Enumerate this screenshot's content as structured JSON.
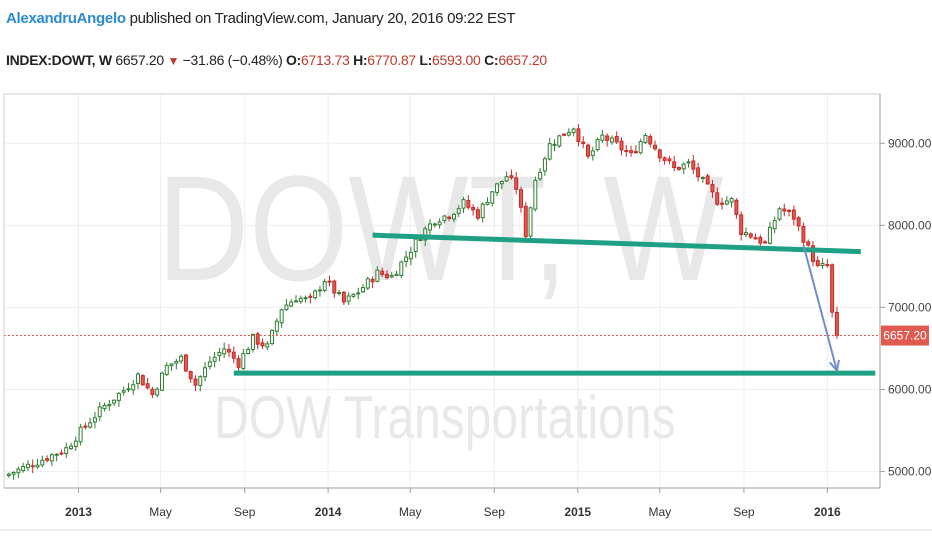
{
  "header": {
    "user": "AlexandruAngelo",
    "published": "published on TradingView.com, January 20, 2016 09:22 EST",
    "symbol": "INDEX:DOWT, W",
    "price": "6657.20",
    "change": "−31.86 (−0.48%)",
    "o_label": "O:",
    "o_value": "6713.73",
    "h_label": "H:",
    "h_value": "6770.87",
    "l_label": "L:",
    "l_value": "6593.00",
    "c_label": "C:",
    "c_value": "6657.20"
  },
  "colors": {
    "up": "#2e7d32",
    "down": "#c62828",
    "down_fill": "#e05a50",
    "trendline": "#1fa085",
    "arrow": "#6f8fc8",
    "price_tag": "#e05a50",
    "grid": "#eeeeee"
  },
  "chart_data": {
    "type": "candlestick",
    "symbol": "INDEX:DOWT",
    "interval": "W",
    "watermark_symbol": "DOWT, W",
    "watermark_name": "DOW Transportations",
    "ylim": [
      4800,
      9600
    ],
    "y_ticks": [
      "9000.00",
      "8000.00",
      "7000.00",
      "6000.00",
      "5000.00"
    ],
    "y_tick_values": [
      9000,
      8000,
      7000,
      6000,
      5000
    ],
    "x_ticks": [
      "2013",
      "May",
      "Sep",
      "2014",
      "May",
      "Sep",
      "2015",
      "May",
      "Sep",
      "2016"
    ],
    "x_tick_bold": [
      true,
      false,
      false,
      true,
      false,
      false,
      true,
      false,
      false,
      true
    ],
    "x_tick_dates": [
      "2013-01-01",
      "2013-05-01",
      "2013-09-01",
      "2014-01-01",
      "2014-05-01",
      "2014-09-01",
      "2015-01-01",
      "2015-05-01",
      "2015-09-01",
      "2016-01-01"
    ],
    "last_price": 6657.2,
    "last_price_label": "6657.20",
    "close_path": [
      [
        "2012-09-21",
        4970
      ],
      [
        "2012-11-02",
        5120
      ],
      [
        "2012-12-14",
        5280
      ],
      [
        "2013-01-11",
        5560
      ],
      [
        "2013-02-08",
        5800
      ],
      [
        "2013-03-08",
        5990
      ],
      [
        "2013-03-29",
        6170
      ],
      [
        "2013-04-19",
        5940
      ],
      [
        "2013-05-10",
        6280
      ],
      [
        "2013-05-31",
        6380
      ],
      [
        "2013-06-21",
        6060
      ],
      [
        "2013-07-12",
        6340
      ],
      [
        "2013-08-02",
        6500
      ],
      [
        "2013-08-23",
        6320
      ],
      [
        "2013-09-13",
        6620
      ],
      [
        "2013-10-04",
        6520
      ],
      [
        "2013-10-25",
        6990
      ],
      [
        "2013-11-15",
        7120
      ],
      [
        "2013-12-06",
        7080
      ],
      [
        "2013-12-27",
        7340
      ],
      [
        "2014-01-24",
        7060
      ],
      [
        "2014-02-14",
        7190
      ],
      [
        "2014-03-14",
        7420
      ],
      [
        "2014-04-04",
        7380
      ],
      [
        "2014-04-25",
        7620
      ],
      [
        "2014-05-16",
        7880
      ],
      [
        "2014-06-06",
        8070
      ],
      [
        "2014-06-27",
        8130
      ],
      [
        "2014-07-18",
        8270
      ],
      [
        "2014-08-08",
        8130
      ],
      [
        "2014-08-29",
        8420
      ],
      [
        "2014-09-19",
        8600
      ],
      [
        "2014-10-03",
        8460
      ],
      [
        "2014-10-17",
        7900
      ],
      [
        "2014-10-31",
        8560
      ],
      [
        "2014-11-21",
        8980
      ],
      [
        "2014-12-12",
        9120
      ],
      [
        "2014-12-26",
        9200
      ],
      [
        "2015-01-16",
        8820
      ],
      [
        "2015-02-06",
        9080
      ],
      [
        "2015-02-27",
        8980
      ],
      [
        "2015-03-20",
        8850
      ],
      [
        "2015-04-10",
        9110
      ],
      [
        "2015-05-01",
        8870
      ],
      [
        "2015-05-22",
        8690
      ],
      [
        "2015-06-12",
        8750
      ],
      [
        "2015-07-03",
        8530
      ],
      [
        "2015-07-24",
        8300
      ],
      [
        "2015-08-14",
        8300
      ],
      [
        "2015-08-28",
        7930
      ],
      [
        "2015-09-11",
        7880
      ],
      [
        "2015-10-02",
        7780
      ],
      [
        "2015-10-23",
        8210
      ],
      [
        "2015-11-13",
        8100
      ],
      [
        "2015-12-04",
        7720
      ],
      [
        "2015-12-18",
        7480
      ],
      [
        "2016-01-01",
        7510
      ],
      [
        "2016-01-08",
        6920
      ],
      [
        "2016-01-15",
        6689
      ],
      [
        "2016-01-20",
        6657
      ]
    ],
    "drawings": {
      "support_line": {
        "from": [
          "2013-08-16",
          6200
        ],
        "to": [
          "2016-03-11",
          6200
        ]
      },
      "resistance_line": {
        "from": [
          "2014-03-07",
          7880
        ],
        "to": [
          "2016-02-19",
          7680
        ]
      },
      "projection_arrow": {
        "from": [
          "2015-11-27",
          7760
        ],
        "to": [
          "2016-01-15",
          6230
        ]
      }
    }
  }
}
